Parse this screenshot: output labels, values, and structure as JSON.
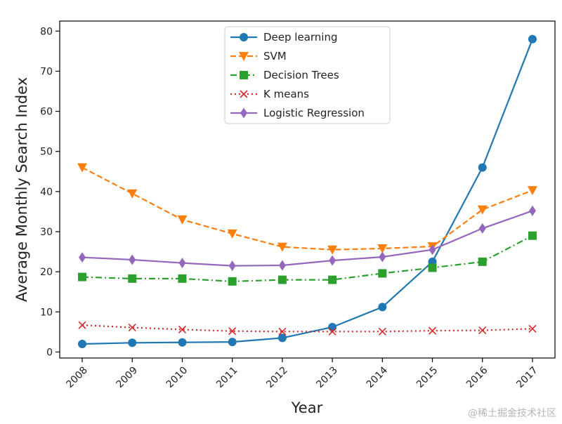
{
  "chart_data": {
    "type": "line",
    "title": "",
    "xlabel": "Year",
    "ylabel": "Average Monthly Search Index",
    "x": [
      2008,
      2009,
      2010,
      2011,
      2012,
      2013,
      2014,
      2015,
      2016,
      2017
    ],
    "x_tick_labels": [
      "2008",
      "2009",
      "2010",
      "2011",
      "2012",
      "2013",
      "2014",
      "2015",
      "2016",
      "2017"
    ],
    "ylim": [
      -1.5,
      82.5
    ],
    "y_ticks": [
      0,
      10,
      20,
      30,
      40,
      50,
      60,
      70,
      80
    ],
    "y_tick_labels": [
      "0",
      "10",
      "20",
      "30",
      "40",
      "50",
      "60",
      "70",
      "80"
    ],
    "grid": false,
    "legend_position": "top-center",
    "series": [
      {
        "name": "Deep learning",
        "color": "#1f77b4",
        "line": "solid",
        "marker": "circle",
        "values": [
          2,
          2.3,
          2.4,
          2.5,
          3.5,
          6.2,
          11.2,
          22.5,
          46,
          78
        ]
      },
      {
        "name": "SVM",
        "color": "#ff7f0e",
        "line": "dashed",
        "marker": "triangle-down",
        "values": [
          46,
          39.5,
          33,
          29.5,
          26.2,
          25.5,
          25.8,
          26.3,
          35.5,
          40.3
        ]
      },
      {
        "name": "Decision Trees",
        "color": "#2ca02c",
        "line": "dashdot",
        "marker": "square",
        "values": [
          18.7,
          18.3,
          18.3,
          17.6,
          18,
          18,
          19.6,
          21,
          22.5,
          29
        ]
      },
      {
        "name": "K means",
        "color": "#d62728",
        "line": "dotted",
        "marker": "x",
        "values": [
          6.7,
          6.1,
          5.6,
          5.2,
          5.1,
          5.1,
          5.1,
          5.3,
          5.4,
          5.8
        ]
      },
      {
        "name": "Logistic Regression",
        "color": "#9467bd",
        "line": "solid",
        "marker": "diamond",
        "values": [
          23.6,
          23,
          22.2,
          21.5,
          21.6,
          22.8,
          23.7,
          25.5,
          30.8,
          35.2
        ]
      }
    ]
  },
  "watermark": "@稀土掘金技术社区"
}
